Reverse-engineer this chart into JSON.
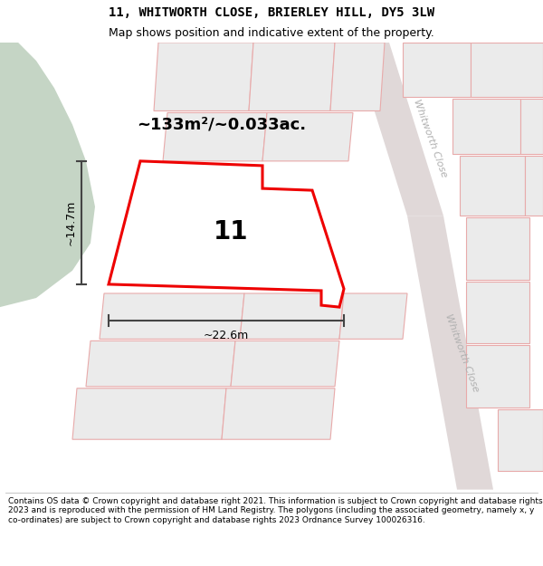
{
  "title_line1": "11, WHITWORTH CLOSE, BRIERLEY HILL, DY5 3LW",
  "title_line2": "Map shows position and indicative extent of the property.",
  "area_text": "~133m²/~0.033ac.",
  "label_number": "11",
  "dim_width": "~22.6m",
  "dim_height": "~14.7m",
  "road_label_upper": "Whitworth Close",
  "road_label_lower": "Whitworth Close",
  "footer_text": "Contains OS data © Crown copyright and database right 2021. This information is subject to Crown copyright and database rights 2023 and is reproduced with the permission of HM Land Registry. The polygons (including the associated geometry, namely x, y co-ordinates) are subject to Crown copyright and database rights 2023 Ordnance Survey 100026316.",
  "map_bg": "#ffffff",
  "green_color": "#c5d5c5",
  "neighbor_fc": "#ebebeb",
  "neighbor_ec": "#e8aaaa",
  "road_fc": "#e0d8d8",
  "plot_ec": "#ee0000",
  "plot_fc": "#ffffff",
  "dim_color": "#444444",
  "title_fontsize": 10,
  "subtitle_fontsize": 9,
  "area_fontsize": 13,
  "label_fontsize": 20,
  "dim_fontsize": 9,
  "road_fontsize": 8,
  "footer_fontsize": 6.5,
  "figsize": [
    6.0,
    6.25
  ],
  "dpi": 100
}
